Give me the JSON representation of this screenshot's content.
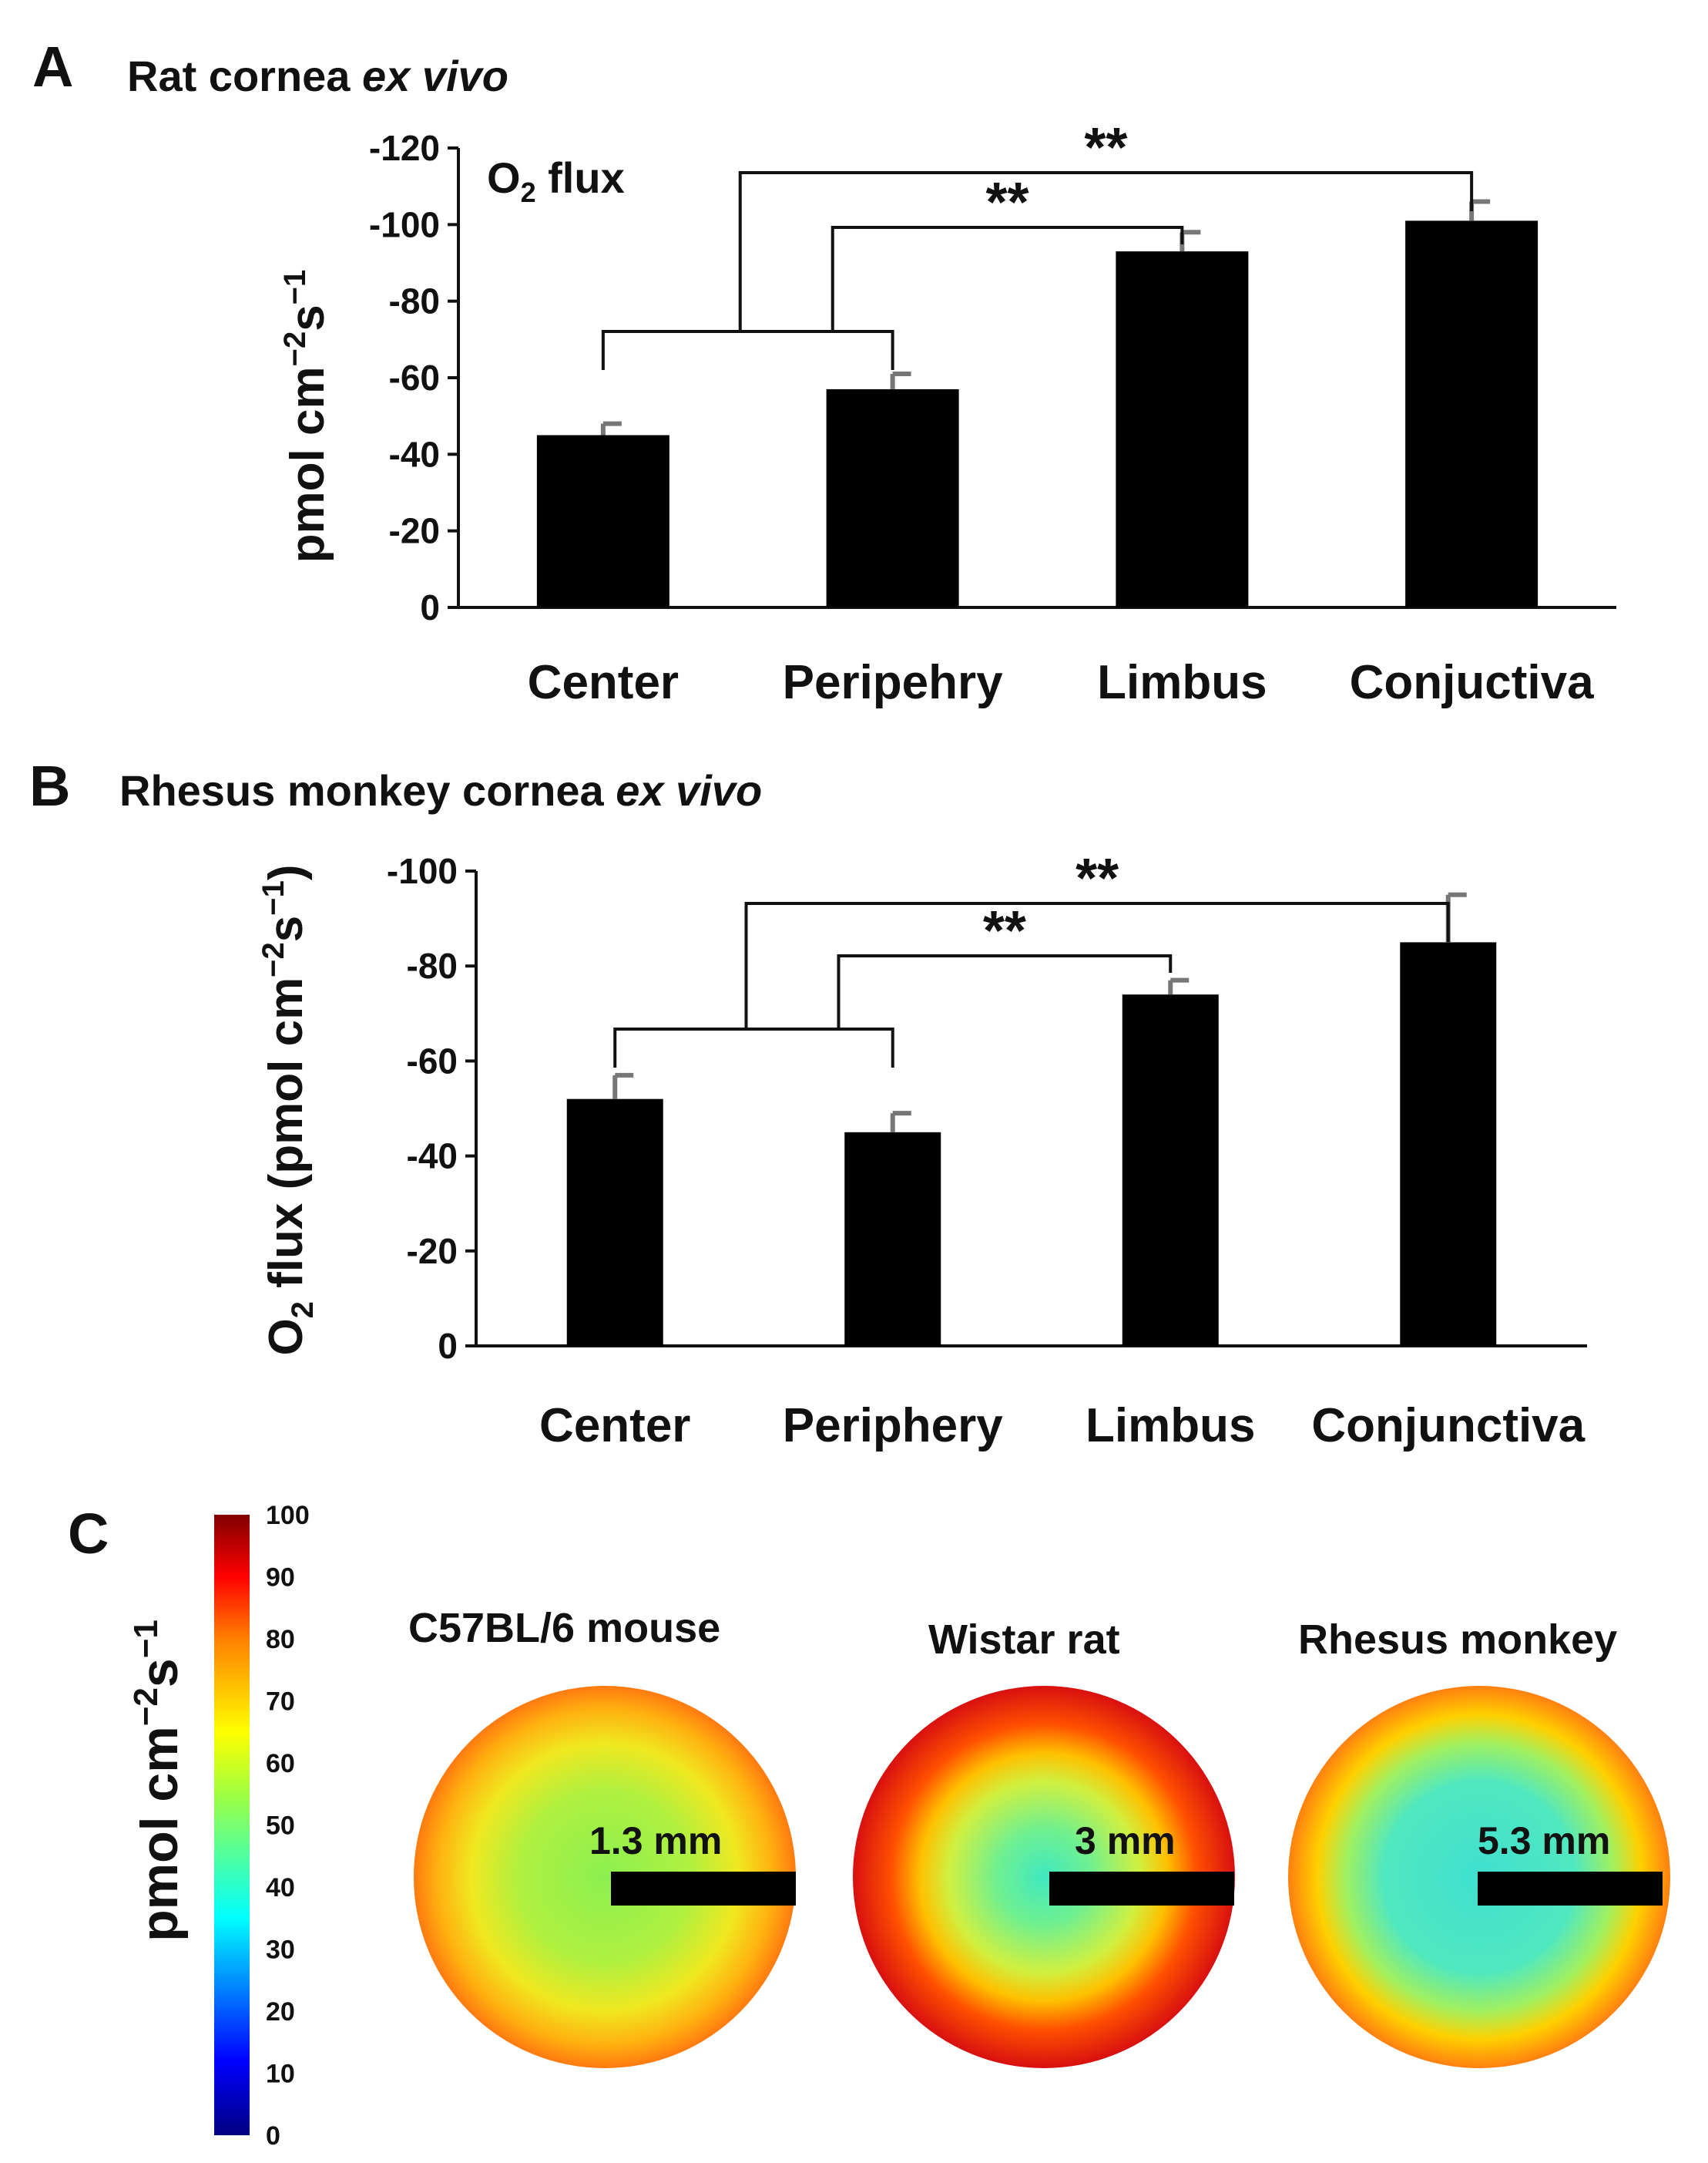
{
  "chart_data": [
    {
      "panel": "A",
      "type": "bar",
      "title_main": "Rat cornea",
      "title_italic": "ex vivo",
      "annotation_main": "O",
      "annotation_sub": "2",
      "annotation_rest": " flux",
      "ylabel": "pmol cm",
      "ylabel_sup1": "−2",
      "ylabel_mid": "s",
      "ylabel_sup2": "−1",
      "categories": [
        "Center",
        "Peripehry",
        "Limbus",
        "Conjuctiva"
      ],
      "values": [
        -45,
        -57,
        -93,
        -101
      ],
      "errors": [
        3,
        4,
        5,
        5
      ],
      "ylim": [
        0,
        -120
      ],
      "ticks": [
        "0",
        "-20",
        "-40",
        "-60",
        "-80",
        "-100",
        "-120"
      ],
      "significance": [
        "**",
        "**"
      ]
    },
    {
      "panel": "B",
      "type": "bar",
      "title_main": "Rhesus monkey cornea",
      "title_italic": "ex vivo",
      "ylabel_pre": "O",
      "ylabel_sub": "2",
      "ylabel": " flux (pmol cm",
      "ylabel_sup1": "−2",
      "ylabel_mid": "s",
      "ylabel_sup2": "−1",
      "ylabel_end": ")",
      "categories": [
        "Center",
        "Periphery",
        "Limbus",
        "Conjunctiva"
      ],
      "values": [
        -52,
        -45,
        -74,
        -85
      ],
      "errors": [
        5,
        4,
        3,
        10
      ],
      "ylim": [
        0,
        -100
      ],
      "ticks": [
        "0",
        "-20",
        "-40",
        "-60",
        "-80",
        "-100"
      ],
      "significance": [
        "**",
        "**"
      ]
    },
    {
      "panel": "C",
      "type": "heatmap",
      "colorbar_ticks": [
        "0",
        "10",
        "20",
        "30",
        "40",
        "50",
        "60",
        "70",
        "80",
        "90",
        "100"
      ],
      "colorbar_range": [
        0,
        100
      ],
      "colorbar_label": "pmol cm",
      "colorbar_sup1": "−2",
      "colorbar_mid": "s",
      "colorbar_sup2": "−1",
      "maps": [
        {
          "species": "C57BL/6 mouse",
          "radius_label": "1.3 mm",
          "center_value": 58,
          "edge_value": 73
        },
        {
          "species": "Wistar rat",
          "radius_label": "3 mm",
          "center_value": 45,
          "edge_value": 88
        },
        {
          "species": "Rhesus monkey",
          "radius_label": "5.3 mm",
          "center_value": 47,
          "edge_value": 73
        }
      ]
    }
  ],
  "colors": {
    "bar": "#000000",
    "error_bar": "#777777",
    "axis": "#111111"
  }
}
